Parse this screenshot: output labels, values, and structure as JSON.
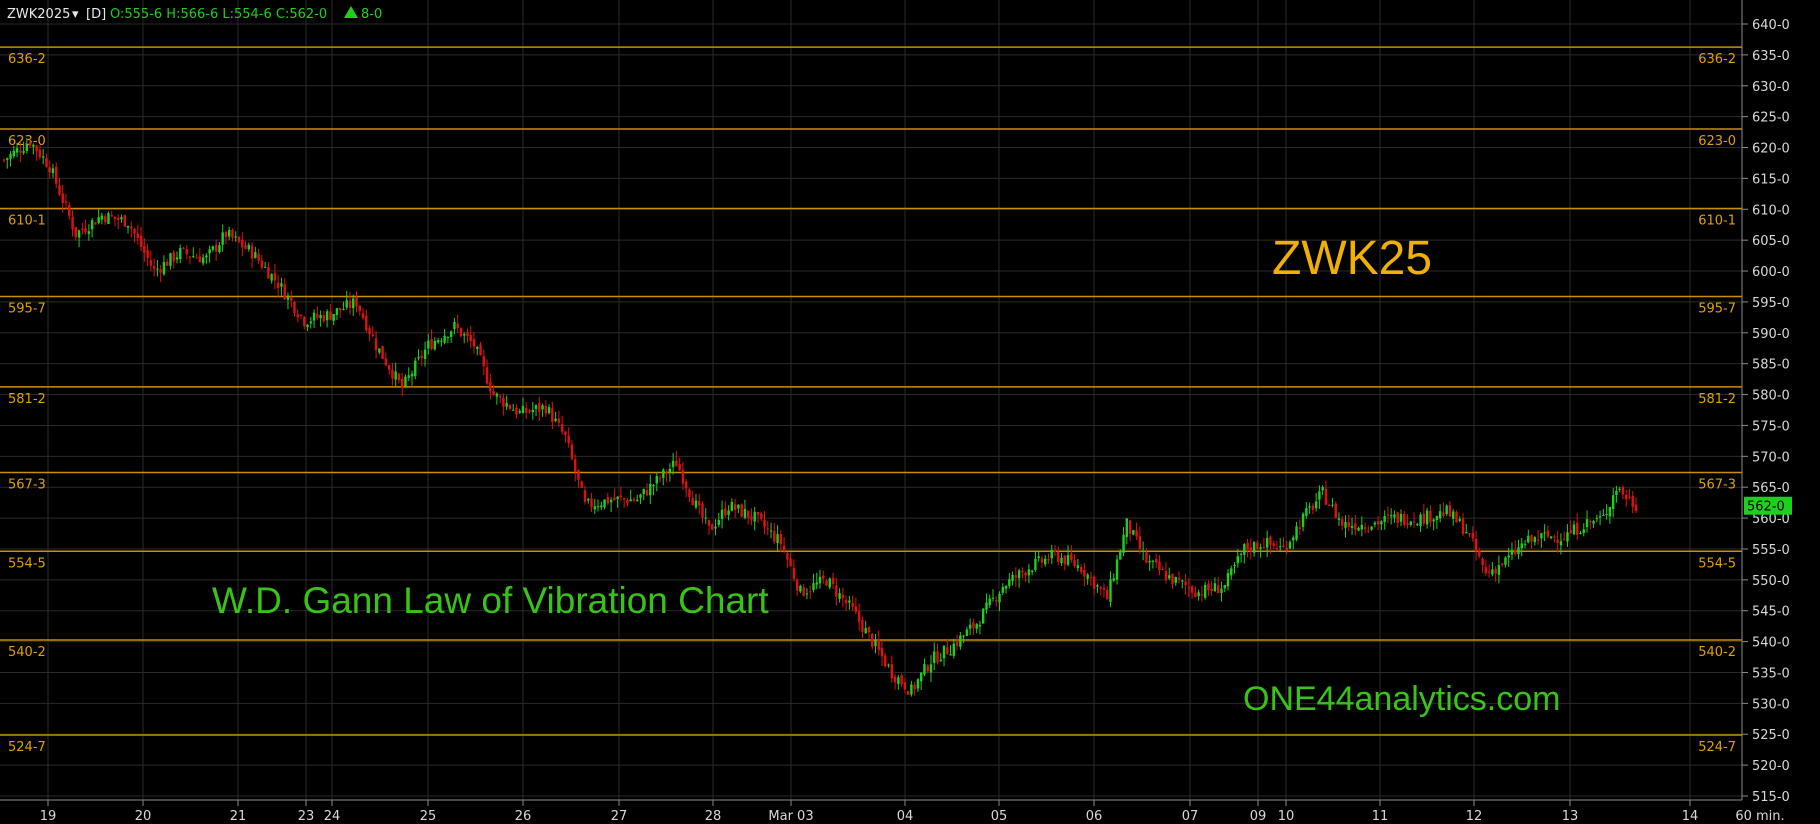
{
  "header": {
    "symbol": "ZWK2025",
    "dropdown_icon": "▾",
    "interval": "[D]",
    "ohlc": "O:555-6 H:566-6 L:554-6 C:562-0",
    "change_icon": "triangle-up-icon",
    "change": "8-0"
  },
  "price_tag": "562-0",
  "overlay_text": {
    "symbol_big": "ZWK25",
    "title": "W.D. Gann Law of Vibration Chart",
    "website": "ONE44analytics.com"
  },
  "colors": {
    "background": "#000000",
    "up": "#1ed01e",
    "down": "#e01010",
    "level_line": "#c89000",
    "level_text": "#e0a000",
    "grid": "#2a2a2a",
    "price_tag_bg": "#1ed01e"
  },
  "chart_data": {
    "type": "candlestick",
    "interval_label": "60 min.",
    "ylim": [
      513,
      643
    ],
    "y_ticks": [
      "640-0",
      "635-0",
      "630-0",
      "625-0",
      "620-0",
      "615-0",
      "610-0",
      "605-0",
      "600-0",
      "595-0",
      "590-0",
      "585-0",
      "580-0",
      "575-0",
      "570-0",
      "565-0",
      "560-0",
      "555-0",
      "550-0",
      "545-0",
      "540-0",
      "535-0",
      "530-0",
      "525-0",
      "520-0",
      "515-0"
    ],
    "x_ticks": [
      "19",
      "20",
      "21",
      "23",
      "24",
      "25",
      "26",
      "27",
      "28",
      "Mar 03",
      "04",
      "05",
      "06",
      "07",
      "09",
      "10",
      "11",
      "12",
      "13",
      "14",
      "60 min."
    ],
    "levels": [
      {
        "label": "636-2",
        "value": 636.25
      },
      {
        "label": "623-0",
        "value": 623.0
      },
      {
        "label": "610-1",
        "value": 610.125
      },
      {
        "label": "595-7",
        "value": 595.875
      },
      {
        "label": "581-2",
        "value": 581.25
      },
      {
        "label": "567-3",
        "value": 567.375
      },
      {
        "label": "554-5",
        "value": 554.625
      },
      {
        "label": "540-2",
        "value": 540.25
      },
      {
        "label": "524-7",
        "value": 524.875
      }
    ],
    "close_path": [
      [
        0,
        618
      ],
      [
        8,
        621
      ],
      [
        14,
        617
      ],
      [
        22,
        606
      ],
      [
        30,
        609
      ],
      [
        38,
        608
      ],
      [
        46,
        600
      ],
      [
        54,
        603
      ],
      [
        62,
        602
      ],
      [
        68,
        606
      ],
      [
        76,
        603
      ],
      [
        84,
        598
      ],
      [
        92,
        592
      ],
      [
        100,
        593
      ],
      [
        108,
        595
      ],
      [
        114,
        588
      ],
      [
        122,
        581
      ],
      [
        130,
        588
      ],
      [
        138,
        591
      ],
      [
        144,
        588
      ],
      [
        150,
        580
      ],
      [
        158,
        577
      ],
      [
        166,
        578
      ],
      [
        172,
        573
      ],
      [
        178,
        562
      ],
      [
        186,
        563
      ],
      [
        194,
        563
      ],
      [
        202,
        567
      ],
      [
        206,
        569
      ],
      [
        212,
        562
      ],
      [
        216,
        558
      ],
      [
        222,
        562
      ],
      [
        230,
        560
      ],
      [
        238,
        556
      ],
      [
        244,
        548
      ],
      [
        252,
        550
      ],
      [
        260,
        545
      ],
      [
        266,
        540
      ],
      [
        272,
        535
      ],
      [
        278,
        532
      ],
      [
        284,
        537
      ],
      [
        290,
        539
      ],
      [
        298,
        543
      ],
      [
        306,
        549
      ],
      [
        314,
        552
      ],
      [
        322,
        554
      ],
      [
        330,
        552
      ],
      [
        338,
        547
      ],
      [
        344,
        559
      ],
      [
        350,
        553
      ],
      [
        358,
        550
      ],
      [
        366,
        548
      ],
      [
        374,
        549
      ],
      [
        380,
        555
      ],
      [
        386,
        556
      ],
      [
        392,
        555
      ],
      [
        398,
        560
      ],
      [
        404,
        564
      ],
      [
        410,
        559
      ],
      [
        418,
        559
      ],
      [
        426,
        560
      ],
      [
        434,
        560
      ],
      [
        442,
        561
      ],
      [
        448,
        558
      ],
      [
        454,
        551
      ],
      [
        460,
        553
      ],
      [
        466,
        556
      ],
      [
        472,
        557
      ],
      [
        478,
        557
      ],
      [
        484,
        559
      ],
      [
        490,
        560
      ],
      [
        494,
        565
      ],
      [
        500,
        562
      ]
    ]
  }
}
